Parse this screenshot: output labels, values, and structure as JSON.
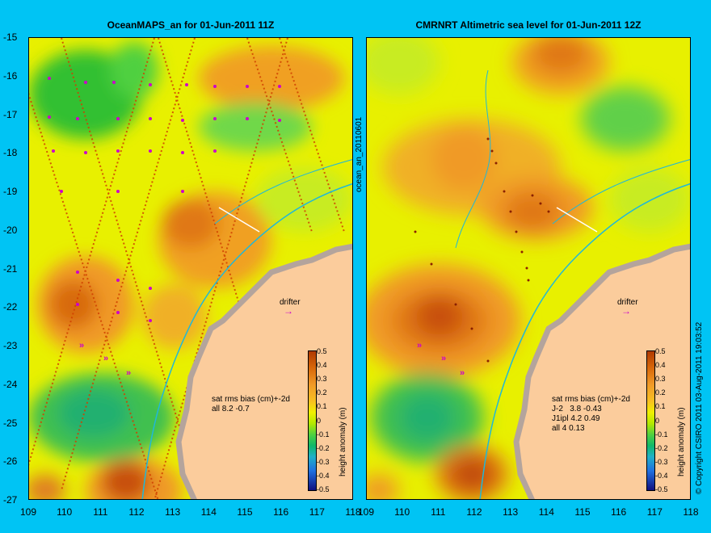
{
  "left_panel": {
    "title": "OceanMAPS_an for 01-Jun-2011 11Z",
    "stats_header": "sat rms bias (cm)+-2d",
    "stats_lines": [
      "all 8.2 -0.7"
    ],
    "drifter_label": "drifter"
  },
  "right_panel": {
    "title": "CMRNRT Altimetric sea level  for 01-Jun-2011 12Z",
    "stats_header": "sat rms bias (cm)+-2d",
    "stats_lines": [
      "J-2   3.8 -0.43",
      "J1ipl 4.2 0.49",
      "all 4 0.13"
    ],
    "drifter_label": "drifter"
  },
  "side_label": "ocean_an_20110601",
  "colorbar_label": "height anomaly (m)",
  "colorbar_ticks": [
    "0.5",
    "0.4",
    "0.3",
    "0.2",
    "0.1",
    "0",
    "-0.1",
    "-0.2",
    "-0.3",
    "-0.4",
    "-0.5"
  ],
  "copyright": "© Copyright CSIRO 2011   03-Aug-2011 19:03:52",
  "axes": {
    "lat_ticks": [
      "-15",
      "-16",
      "-17",
      "-18",
      "-19",
      "-20",
      "-21",
      "-22",
      "-23",
      "-24",
      "-25",
      "-26",
      "-27"
    ],
    "lon_ticks": [
      "109",
      "110",
      "111",
      "112",
      "113",
      "114",
      "115",
      "116",
      "117",
      "118"
    ],
    "lat_range": [
      -27,
      -15
    ],
    "lon_range": [
      109,
      118
    ]
  },
  "colors": {
    "background": "#00c4f4",
    "land": "#fbcc9c",
    "coast_shelf": "#b4a49c",
    "track_marks": "#cc00cc",
    "positive_high": "#b03a00",
    "neutral": "#f0f000",
    "negative": "#10b86a"
  }
}
